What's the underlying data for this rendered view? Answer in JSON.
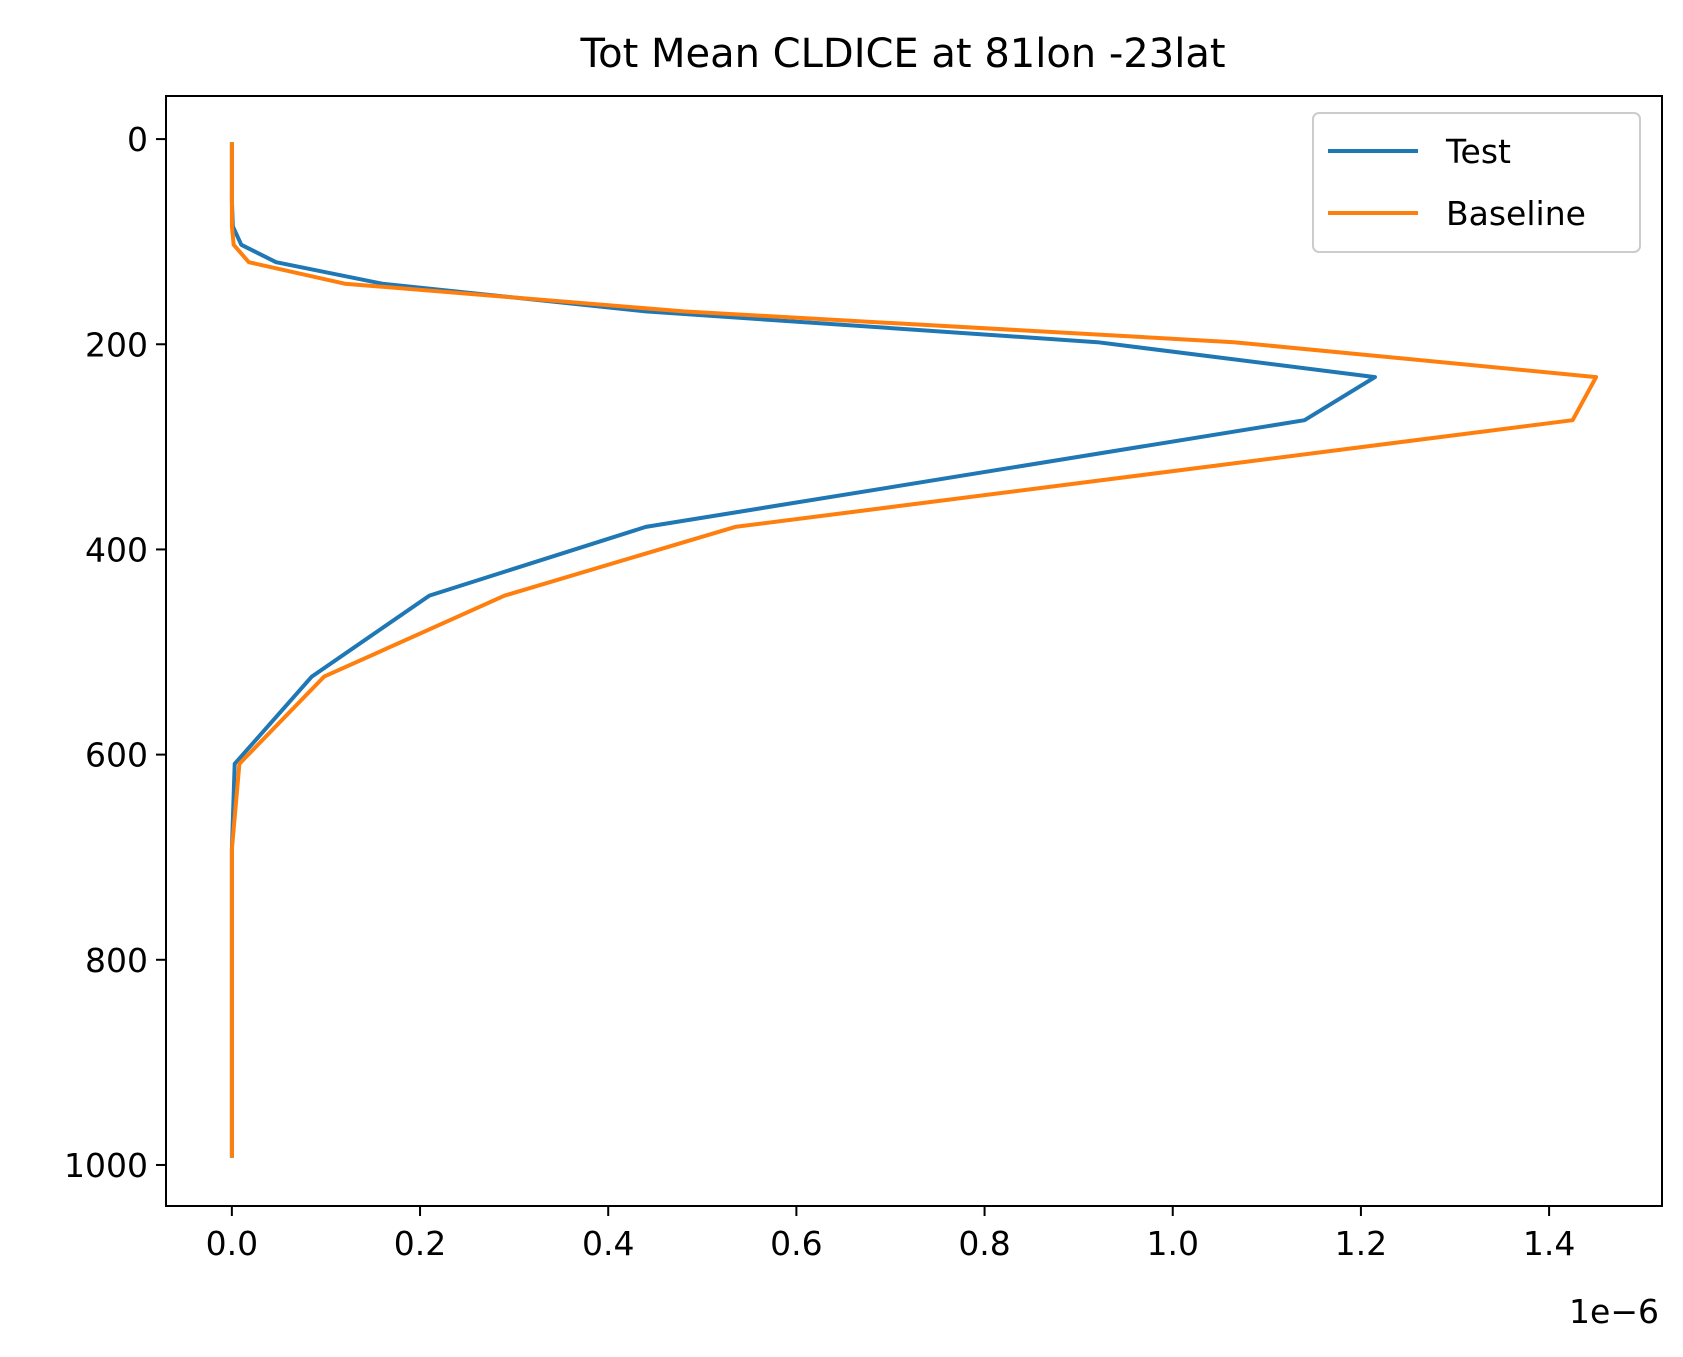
{
  "chart_data": {
    "type": "line",
    "title": "Tot Mean CLDICE at 81lon -23lat",
    "xlabel": "",
    "ylabel": "",
    "x_offset_label": "1e−6",
    "xlim": [
      -0.07,
      1.52
    ],
    "ylim": [
      1040,
      -42
    ],
    "y_inverted": true,
    "x_ticks": [
      0.0,
      0.2,
      0.4,
      0.6,
      0.8,
      1.0,
      1.2,
      1.4
    ],
    "x_tick_labels": [
      "0.0",
      "0.2",
      "0.4",
      "0.6",
      "0.8",
      "1.0",
      "1.2",
      "1.4"
    ],
    "y_ticks": [
      0,
      200,
      400,
      600,
      800,
      1000
    ],
    "y_tick_labels": [
      "0",
      "200",
      "400",
      "600",
      "800",
      "1000"
    ],
    "grid": false,
    "legend_position": "top-right",
    "series": [
      {
        "name": "Test",
        "color": "#1f77b4",
        "points": [
          [
            0.0,
            3
          ],
          [
            0.0,
            30
          ],
          [
            0.0,
            60
          ],
          [
            0.001,
            85
          ],
          [
            0.01,
            103
          ],
          [
            0.047,
            120
          ],
          [
            0.16,
            141
          ],
          [
            0.44,
            168
          ],
          [
            0.92,
            198
          ],
          [
            1.215,
            232
          ],
          [
            1.14,
            274
          ],
          [
            0.44,
            378
          ],
          [
            0.21,
            445
          ],
          [
            0.085,
            524
          ],
          [
            0.003,
            609
          ],
          [
            0.0,
            692
          ],
          [
            0.0,
            800
          ],
          [
            0.0,
            993
          ]
        ]
      },
      {
        "name": "Baseline",
        "color": "#ff7f0e",
        "points": [
          [
            0.0,
            3
          ],
          [
            0.0,
            30
          ],
          [
            0.0,
            60
          ],
          [
            0.0,
            85
          ],
          [
            0.002,
            103
          ],
          [
            0.018,
            120
          ],
          [
            0.12,
            141
          ],
          [
            0.48,
            168
          ],
          [
            1.065,
            198
          ],
          [
            1.45,
            232
          ],
          [
            1.425,
            274
          ],
          [
            0.535,
            378
          ],
          [
            0.29,
            445
          ],
          [
            0.098,
            524
          ],
          [
            0.008,
            609
          ],
          [
            0.0,
            692
          ],
          [
            0.0,
            800
          ],
          [
            0.0,
            993
          ]
        ]
      }
    ]
  }
}
